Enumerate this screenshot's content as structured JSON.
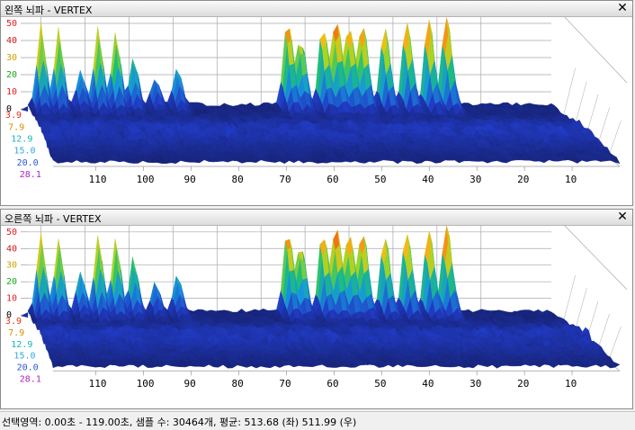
{
  "panes": [
    {
      "title": "왼쪽 뇌파 - VERTEX",
      "close_icon": "close-icon",
      "z_ticks": [
        "0",
        "10",
        "20",
        "30",
        "40",
        "50"
      ],
      "freq_ticks": [
        "3.9",
        "7.9",
        "12.9",
        "15.0",
        "20.0",
        "28.1"
      ],
      "freq_colors": [
        "#e8301c",
        "#d89000",
        "#18b4b4",
        "#30a8e0",
        "#2858d0",
        "#b020c8"
      ],
      "time_ticks": [
        "110",
        "100",
        "90",
        "80",
        "70",
        "60",
        "50",
        "40",
        "30",
        "20",
        "10"
      ]
    },
    {
      "title": "오른쪽 뇌파 - VERTEX",
      "close_icon": "close-icon",
      "z_ticks": [
        "0",
        "10",
        "20",
        "30",
        "40",
        "50"
      ],
      "freq_ticks": [
        "3.9",
        "7.9",
        "12.9",
        "15.0",
        "20.0",
        "28.1"
      ],
      "freq_colors": [
        "#e8301c",
        "#d89000",
        "#18b4b4",
        "#30a8e0",
        "#2858d0",
        "#b020c8"
      ],
      "time_ticks": [
        "110",
        "100",
        "90",
        "80",
        "70",
        "60",
        "50",
        "40",
        "30",
        "20",
        "10"
      ]
    }
  ],
  "status": {
    "text": "선택영역: 0.00초 - 119.00초, 샘플 수: 30464개, 평균: 513.68 (좌) 511.99 (우)"
  },
  "peaks": [
    {
      "pane": 0,
      "t": 116,
      "h": 47
    },
    {
      "pane": 0,
      "t": 112,
      "h": 44
    },
    {
      "pane": 0,
      "t": 107,
      "h": 20
    },
    {
      "pane": 0,
      "t": 103,
      "h": 45
    },
    {
      "pane": 0,
      "t": 99,
      "h": 42
    },
    {
      "pane": 0,
      "t": 95,
      "h": 28
    },
    {
      "pane": 0,
      "t": 90,
      "h": 16
    },
    {
      "pane": 0,
      "t": 85,
      "h": 22
    },
    {
      "pane": 0,
      "t": 60,
      "h": 50
    },
    {
      "pane": 0,
      "t": 57,
      "h": 39
    },
    {
      "pane": 0,
      "t": 52,
      "h": 46
    },
    {
      "pane": 0,
      "t": 49,
      "h": 52
    },
    {
      "pane": 0,
      "t": 46,
      "h": 47
    },
    {
      "pane": 0,
      "t": 43,
      "h": 49
    },
    {
      "pane": 0,
      "t": 38,
      "h": 46
    },
    {
      "pane": 0,
      "t": 33,
      "h": 49
    },
    {
      "pane": 0,
      "t": 28,
      "h": 50
    },
    {
      "pane": 0,
      "t": 24,
      "h": 53
    },
    {
      "pane": 1,
      "t": 116,
      "h": 47
    },
    {
      "pane": 1,
      "t": 112,
      "h": 44
    },
    {
      "pane": 1,
      "t": 107,
      "h": 24
    },
    {
      "pane": 1,
      "t": 103,
      "h": 46
    },
    {
      "pane": 1,
      "t": 99,
      "h": 44
    },
    {
      "pane": 1,
      "t": 95,
      "h": 32
    },
    {
      "pane": 1,
      "t": 90,
      "h": 18
    },
    {
      "pane": 1,
      "t": 85,
      "h": 22
    },
    {
      "pane": 1,
      "t": 60,
      "h": 50
    },
    {
      "pane": 1,
      "t": 57,
      "h": 41
    },
    {
      "pane": 1,
      "t": 52,
      "h": 48
    },
    {
      "pane": 1,
      "t": 49,
      "h": 52
    },
    {
      "pane": 1,
      "t": 46,
      "h": 47
    },
    {
      "pane": 1,
      "t": 43,
      "h": 49
    },
    {
      "pane": 1,
      "t": 38,
      "h": 46
    },
    {
      "pane": 1,
      "t": 33,
      "h": 49
    },
    {
      "pane": 1,
      "t": 28,
      "h": 50
    },
    {
      "pane": 1,
      "t": 24,
      "h": 53
    }
  ]
}
